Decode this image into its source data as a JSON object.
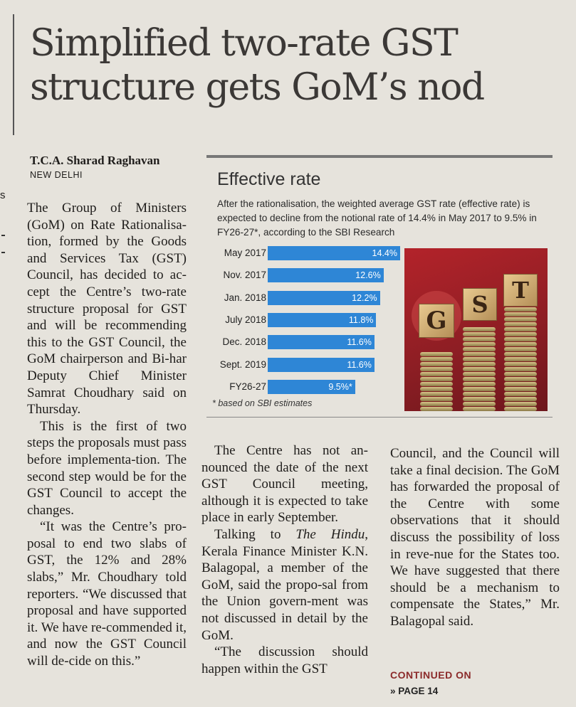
{
  "headline": [
    "Simplified two-rate GST",
    "structure gets GoM’s nod"
  ],
  "byline": "T.C.A. Sharad Raghavan",
  "dateline": "NEW DELHI",
  "edge_letter": "s",
  "graphic": {
    "title": "Effective rate",
    "subtitle": "After the rationalisation, the weighted average GST rate (effective rate) is expected to decline from the notional rate of 14.4% in May 2017 to 9.5% in FY26-27*, according to the SBI Research",
    "footnote": "* based on SBI estimates",
    "photo_letters": [
      "G",
      "S",
      "T"
    ],
    "bar_color": "#2e86d6"
  },
  "chart_data": {
    "type": "bar",
    "orientation": "horizontal",
    "categories": [
      "May 2017",
      "Nov. 2017",
      "Jan. 2018",
      "July 2018",
      "Dec. 2018",
      "Sept. 2019",
      "FY26-27"
    ],
    "values": [
      14.4,
      12.6,
      12.2,
      11.8,
      11.6,
      11.6,
      9.5
    ],
    "value_labels": [
      "14.4%",
      "12.6%",
      "12.2%",
      "11.8%",
      "11.6%",
      "11.6%",
      "9.5%*"
    ],
    "title": "Effective rate",
    "xlabel": "",
    "ylabel": ""
  },
  "body": {
    "col1": [
      "The Group of Ministers (GoM) on Rate Rationalisa-tion, formed by the Goods and Services Tax (GST) Council, has decided to ac-cept the Centre’s two-rate structure proposal for GST and will be recommending this to the GST Council, the GoM chairperson and Bi-har Deputy Chief Minister Samrat Choudhary said on Thursday.",
      "This is the first of two steps the proposals must pass before implementa-tion. The second step would be for the GST Council to accept the changes.",
      "“It was the Centre’s pro-posal to end two slabs of GST, the 12% and 28% slabs,” Mr. Choudhary told reporters. “We discussed that proposal and have supported it. We have re-commended it, and now the GST Council will de-cide on this.”"
    ],
    "col2": [
      "The Centre has not an-nounced the date of the next GST Council meeting, although it is expected to take place in early September.",
      "Talking to The Hindu, Kerala Finance Minister K.N. Balagopal, a member of the GoM, said the propo-sal from the Union govern-ment was not discussed in detail by the GoM.",
      "“The discussion should happen within the GST"
    ],
    "col3": [
      "Council, and the Council will take a final decision. The GoM has forwarded the proposal of the Centre with some observations that it should discuss the possibility of loss in reve-nue for the States too. We have suggested that there should be a mechanism to compensate the States,” Mr. Balagopal said."
    ]
  },
  "continued": {
    "label": "CONTINUED ON",
    "page": "» PAGE 14"
  }
}
